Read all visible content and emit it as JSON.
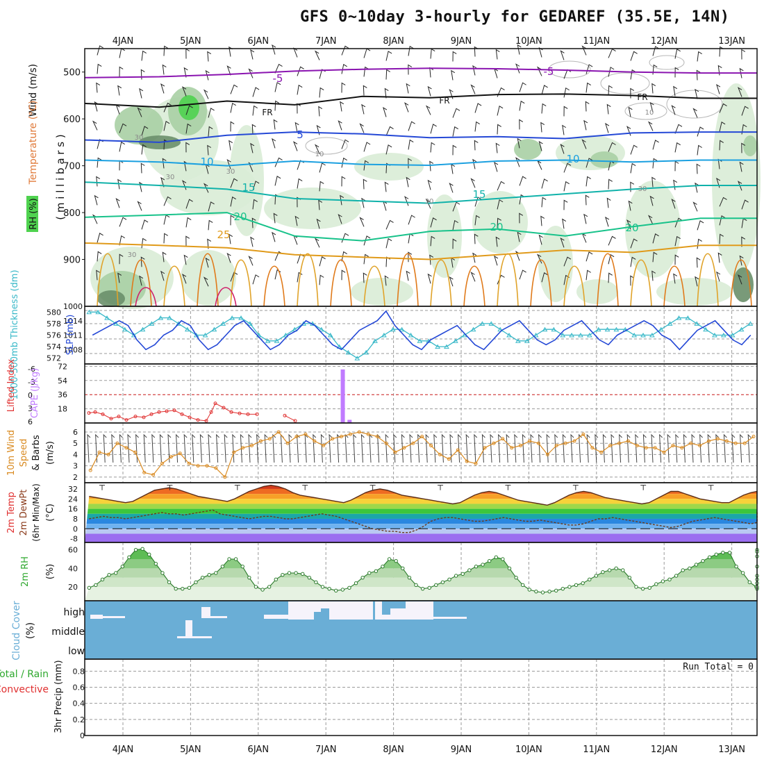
{
  "title": "GFS 0~10day 3-hourly for GEDAREF (35.5E, 14N)",
  "days": [
    "4JAN",
    "5JAN",
    "6JAN",
    "7JAN",
    "8JAN",
    "9JAN",
    "10JAN",
    "11JAN",
    "12JAN",
    "13JAN"
  ],
  "colors": {
    "frame": "#111111",
    "grid": "#9a9a9a",
    "rh_light": "#d9ecd6",
    "rh_mid": "#a9cfa4",
    "rh_dark": "#6a8f6a",
    "rh_green": "#4fd24f",
    "slp": "#2448d6",
    "thickness": "#38b8c8",
    "lifted": "#e03030",
    "cape": "#c07bff",
    "wind10": "#d98a20",
    "cloud": "#6aaed6",
    "cloud_white": "#f6f3fb",
    "rh2m": "#2ea82e"
  },
  "chart_data": [
    {
      "type": "heatmap",
      "name": "upper_air",
      "ylabel": "( m i l l i b a r s )",
      "side_labels": [
        "Wind (m/s)",
        "Temperature (°C)",
        "RH (%)"
      ],
      "yticks": [
        500,
        600,
        700,
        800,
        900
      ],
      "ylim": [
        1000,
        450
      ],
      "isotherm_labels": [
        "-5",
        "-5",
        "FR",
        "FR",
        "FR",
        "5",
        "10",
        "10",
        "15",
        "15",
        "20",
        "20",
        "20",
        "25"
      ],
      "rh_labels": [
        "30",
        "30",
        "30",
        "30",
        "10",
        "10",
        "30",
        "30"
      ],
      "isotherms": [
        {
          "label": "-5",
          "color": "#8a14b0",
          "p": [
            512,
            510,
            505,
            498,
            494,
            492,
            493,
            496,
            500,
            502
          ]
        },
        {
          "label": "FR",
          "color": "#111111",
          "p": [
            567,
            575,
            562,
            570,
            552,
            555,
            548,
            547,
            550,
            556
          ]
        },
        {
          "label": "5",
          "color": "#2448d6",
          "p": [
            645,
            650,
            635,
            628,
            632,
            640,
            638,
            642,
            630,
            628
          ]
        },
        {
          "label": "10",
          "color": "#1ba0e0",
          "p": [
            688,
            692,
            700,
            690,
            697,
            699,
            690,
            688,
            692,
            688
          ]
        },
        {
          "label": "15",
          "color": "#10b2aa",
          "p": [
            735,
            742,
            750,
            770,
            775,
            780,
            770,
            760,
            750,
            742
          ]
        },
        {
          "label": "20",
          "color": "#17c28a",
          "p": [
            810,
            805,
            800,
            850,
            860,
            840,
            835,
            850,
            830,
            812
          ]
        },
        {
          "label": "25",
          "color": "#e09a1a",
          "p": [
            865,
            870,
            875,
            890,
            895,
            900,
            890,
            880,
            885,
            870
          ]
        }
      ]
    },
    {
      "type": "line",
      "name": "slp_thickness",
      "ylabel_left": "1000-500mb Thickness (dm)",
      "ylabel_right": "SLP (mb)",
      "yticks_left": [
        572,
        574,
        576,
        578,
        580
      ],
      "yticks_right": [
        1008,
        1011,
        1014,
        1000
      ],
      "series": [
        {
          "name": "SLP (mb)",
          "values": [
            1011,
            1012,
            1013,
            1014,
            1013,
            1010,
            1008,
            1009,
            1011,
            1012,
            1014,
            1013,
            1010,
            1008,
            1009,
            1011,
            1013,
            1014,
            1012,
            1010,
            1008,
            1009,
            1011,
            1012,
            1014,
            1013,
            1011,
            1009,
            1008,
            1010,
            1012,
            1013,
            1014,
            1016,
            1013,
            1011,
            1009,
            1008,
            1010,
            1011,
            1012,
            1013,
            1011,
            1009,
            1008,
            1010,
            1012,
            1013,
            1014,
            1012,
            1010,
            1009,
            1010,
            1012,
            1013,
            1014,
            1012,
            1010,
            1009,
            1011,
            1012,
            1013,
            1014,
            1013,
            1011,
            1010,
            1008,
            1010,
            1012,
            1013,
            1014,
            1012,
            1010,
            1009,
            1011,
            1012,
            1013,
            1014,
            1012,
            1010,
            1009,
            1011
          ]
        },
        {
          "name": "1000-500mb Thickness (dm)",
          "values": [
            580,
            580,
            579,
            578,
            577,
            576,
            577,
            578,
            579,
            579,
            578,
            577,
            576,
            576,
            577,
            578,
            579,
            579,
            578,
            576,
            575,
            575,
            576,
            577,
            578,
            578,
            577,
            576,
            574,
            573,
            572,
            573,
            575,
            576,
            577,
            577,
            576,
            575,
            575,
            574,
            574,
            575,
            576,
            577,
            578,
            578,
            577,
            576,
            575,
            575,
            576,
            577,
            577,
            576,
            576,
            576,
            576,
            577,
            577,
            577,
            577,
            576,
            576,
            576,
            577,
            578,
            579,
            579,
            578,
            577,
            576,
            576,
            576,
            577,
            578,
            579,
            580,
            580,
            579,
            578,
            577,
            578
          ]
        }
      ]
    },
    {
      "type": "bar",
      "name": "cape_lifted_index",
      "ylabel_left": "Lifted Index",
      "ylabel_right": "CAPE (J/kg)",
      "yticks_left": [
        "-6",
        "-3",
        "0",
        "3",
        "6"
      ],
      "yticks_right": [
        18,
        36,
        54,
        72
      ],
      "cape_series": {
        "name": "CAPE (J/kg)",
        "values": [
          0,
          0,
          0,
          0,
          0,
          0,
          0,
          0,
          0,
          0,
          0,
          0,
          0,
          0,
          0,
          0,
          0,
          0,
          0,
          0,
          0,
          0,
          0,
          0,
          0,
          0,
          0,
          0,
          0,
          0,
          0,
          0,
          0,
          0,
          0,
          0,
          0,
          0,
          0,
          0,
          0,
          0,
          0,
          0,
          0,
          0,
          0,
          0,
          0,
          0,
          0,
          0,
          0,
          0,
          0,
          0,
          0,
          0,
          0,
          0,
          0,
          0,
          0,
          0,
          0,
          0,
          0,
          0,
          0,
          0,
          0,
          0,
          0,
          0,
          0,
          0,
          0,
          0,
          0,
          0,
          0,
          0
        ]
      },
      "cape_spikes": [
        {
          "x": 4.25,
          "value": 68
        },
        {
          "x": 4.35,
          "value": 4
        }
      ],
      "lifted_index": {
        "name": "Lifted Index",
        "values": [
          4.2,
          4.0,
          4.5,
          5.5,
          5.0,
          5.8,
          5.0,
          5.2,
          4.5,
          4.0,
          3.8,
          3.6,
          4.5,
          5.2,
          5.8,
          6.0,
          4.0,
          2.0,
          3.0,
          4.0,
          4.3,
          4.5,
          4.5,
          4.8,
          6.0
        ]
      }
    },
    {
      "type": "line",
      "name": "wind10m",
      "ylabel": "10m Wind Speed & Barbs (m/s)",
      "yticks": [
        2,
        3,
        4,
        5,
        6
      ],
      "ylim": [
        1.5,
        6.8
      ],
      "series": [
        {
          "name": "10m Wind Speed",
          "values": [
            2.6,
            4.2,
            4.0,
            5.0,
            4.6,
            4.2,
            2.4,
            2.2,
            3.2,
            3.8,
            4.1,
            3.2,
            3.0,
            3.0,
            2.8,
            2.0,
            4.2,
            4.6,
            4.8,
            5.2,
            5.4,
            6.0,
            5.0,
            5.6,
            5.8,
            5.2,
            4.8,
            5.4,
            5.6,
            5.8,
            6.0,
            5.8,
            5.6,
            5.0,
            4.2,
            4.6,
            5.0,
            5.6,
            4.8,
            4.0,
            3.6,
            4.4,
            3.4,
            3.2,
            4.6,
            5.0,
            5.4,
            4.6,
            4.8,
            5.2,
            5.0,
            4.0,
            4.8,
            5.0,
            5.2,
            5.8,
            4.6,
            4.2,
            4.8,
            5.0,
            5.2,
            4.8,
            4.6,
            4.6,
            4.2,
            4.8,
            4.6,
            5.0,
            4.8,
            5.2,
            5.4,
            5.2,
            5.0,
            5.0,
            5.6,
            6.0,
            5.8,
            5.4,
            5.6,
            5.0,
            4.8,
            4.6
          ]
        }
      ]
    },
    {
      "type": "area",
      "name": "temp2m",
      "ylabel": "2m Temp 2m DewPt (6hr Min/Max) (°C)",
      "yticks": [
        32,
        24,
        16,
        8,
        0,
        -8
      ],
      "ylim": [
        -11,
        37
      ],
      "series": [
        {
          "name": "2m Temp",
          "values": [
            26,
            25,
            24,
            23,
            22,
            21,
            22,
            25,
            28,
            31,
            32,
            33,
            32,
            30,
            28,
            26,
            25,
            24,
            23,
            22,
            24,
            27,
            30,
            32,
            34,
            35,
            34,
            32,
            29,
            27,
            26,
            25,
            24,
            23,
            22,
            21,
            23,
            26,
            29,
            31,
            32,
            31,
            29,
            27,
            26,
            25,
            24,
            23,
            22,
            21,
            20,
            21,
            24,
            27,
            29,
            30,
            29,
            27,
            25,
            23,
            22,
            21,
            20,
            19,
            21,
            24,
            27,
            29,
            30,
            29,
            27,
            25,
            24,
            23,
            22,
            21,
            20,
            21,
            24,
            27,
            30,
            30,
            28,
            26,
            24,
            23,
            22,
            21,
            21,
            24,
            27,
            29,
            30,
            29,
            27,
            25,
            24,
            22,
            21,
            20,
            21
          ]
        },
        {
          "name": "2m DewPt",
          "values": [
            8,
            9,
            10,
            9,
            9,
            8,
            9,
            10,
            11,
            12,
            13,
            12,
            12,
            11,
            12,
            13,
            14,
            15,
            12,
            11,
            10,
            9,
            8,
            9,
            10,
            10,
            9,
            8,
            8,
            9,
            10,
            11,
            12,
            11,
            10,
            8,
            6,
            4,
            2,
            0,
            -1,
            -2,
            -2,
            -3,
            -3,
            -1,
            2,
            6,
            8,
            9,
            9,
            8,
            7,
            6,
            6,
            7,
            8,
            9,
            8,
            7,
            6,
            6,
            7,
            6,
            5,
            4,
            3,
            3,
            4,
            6,
            8,
            8,
            9,
            8,
            7,
            6,
            5,
            4,
            3,
            2,
            1,
            2,
            4,
            6,
            7,
            8,
            9,
            8,
            7,
            6,
            5,
            4,
            5,
            6,
            7,
            8,
            9,
            10,
            11,
            12,
            14
          ]
        }
      ]
    },
    {
      "type": "area",
      "name": "rh2m",
      "ylabel": "2m RH (%)",
      "yticks": [
        20,
        40,
        60
      ],
      "ylim": [
        5,
        68
      ],
      "series": [
        {
          "name": "2m RH",
          "values": [
            19,
            22,
            28,
            33,
            35,
            42,
            52,
            60,
            61,
            55,
            45,
            35,
            25,
            18,
            18,
            19,
            25,
            30,
            33,
            35,
            42,
            50,
            50,
            42,
            30,
            20,
            17,
            20,
            28,
            33,
            35,
            35,
            34,
            30,
            25,
            20,
            18,
            16,
            17,
            19,
            24,
            30,
            35,
            37,
            42,
            50,
            48,
            40,
            30,
            22,
            18,
            19,
            22,
            25,
            28,
            32,
            34,
            38,
            42,
            44,
            48,
            52,
            50,
            40,
            30,
            22,
            17,
            15,
            14,
            15,
            16,
            18,
            20,
            22,
            24,
            28,
            32,
            36,
            38,
            40,
            38,
            30,
            20,
            18,
            19,
            23,
            26,
            28,
            32,
            38,
            40,
            44,
            48,
            52,
            55,
            57,
            57,
            42,
            35,
            25,
            20,
            18,
            20,
            24,
            28,
            32,
            42,
            53,
            60,
            58
          ]
        }
      ]
    },
    {
      "type": "bar",
      "name": "cloud_cover",
      "ylabel": "Cloud Cover (%)",
      "level_labels": [
        "high",
        "middle",
        "low"
      ],
      "high": [
        10,
        10,
        10,
        10,
        0,
        0,
        0,
        0,
        0,
        0,
        0,
        0,
        10,
        40,
        10,
        0,
        0,
        0,
        0,
        0,
        0,
        0,
        20,
        10,
        10,
        90,
        90,
        90,
        90,
        90,
        90,
        70,
        40,
        90,
        60,
        60,
        90,
        90,
        90,
        20,
        40,
        80,
        90,
        60,
        90,
        90,
        90,
        90,
        10,
        10,
        0,
        0
      ],
      "middle": [
        0,
        0,
        0,
        0,
        0,
        0,
        0,
        0,
        0,
        0,
        0,
        0,
        0,
        0,
        0,
        0,
        0,
        0,
        0,
        0,
        0,
        0,
        0,
        0,
        0,
        0,
        0,
        0,
        0,
        0,
        0,
        0,
        0,
        0,
        0,
        0,
        0,
        0,
        0,
        0,
        0,
        0,
        0,
        0,
        0,
        0,
        0,
        0,
        0,
        0,
        0,
        0
      ]
    },
    {
      "type": "line",
      "name": "precip",
      "ylabel": "3hr Precip (mm)",
      "legend": [
        "Total / Rain",
        "Convective"
      ],
      "yticks": [
        0,
        0.2,
        0.4,
        0.6,
        0.8
      ],
      "ylim": [
        0,
        0.95
      ],
      "annotation": "Run Total = 0",
      "series": [
        {
          "name": "3hr Precip (mm)",
          "values": [
            0,
            0,
            0,
            0,
            0,
            0,
            0,
            0,
            0,
            0
          ]
        }
      ]
    }
  ]
}
